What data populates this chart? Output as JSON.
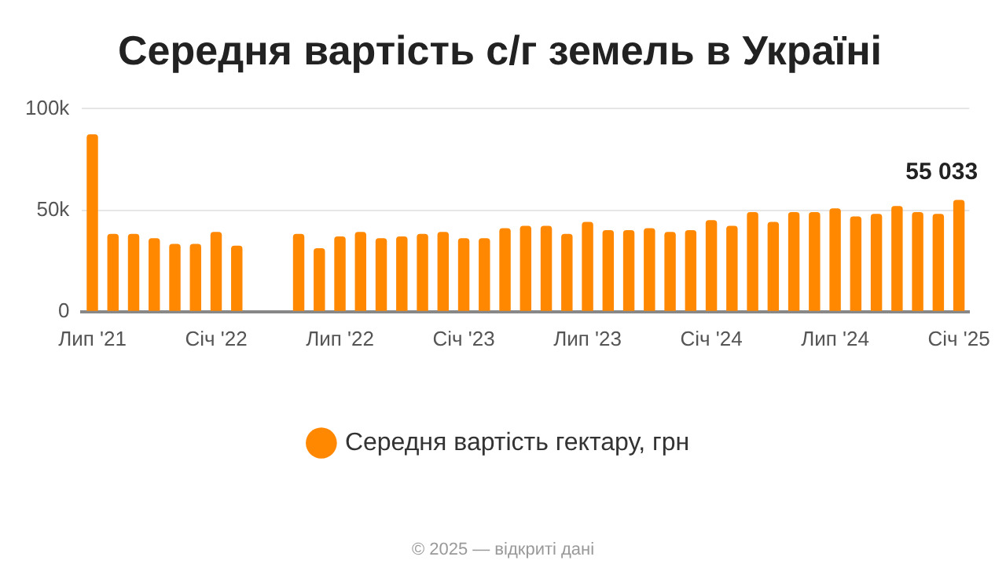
{
  "chart_data": {
    "type": "bar",
    "title": "Середня вартість с/г земель в Україні",
    "categories": [
      "Лип '21",
      null,
      null,
      null,
      null,
      null,
      "Січ '22",
      null,
      null,
      null,
      null,
      null,
      "Лип '22",
      null,
      null,
      null,
      null,
      null,
      "Січ '23",
      null,
      null,
      null,
      null,
      null,
      "Лип '23",
      null,
      null,
      null,
      null,
      null,
      "Січ '24",
      null,
      null,
      null,
      null,
      null,
      "Лип '24",
      null,
      null,
      null,
      null,
      null,
      "Січ '25"
    ],
    "series": [
      {
        "name": "Середня вартість гектару, грн",
        "color": "#ff8800",
        "values": [
          87400,
          38300,
          38300,
          36200,
          33400,
          33400,
          39300,
          32500,
          null,
          null,
          38300,
          31300,
          37100,
          39300,
          36200,
          37100,
          38300,
          39300,
          36200,
          36200,
          41100,
          42300,
          42300,
          38300,
          44200,
          40200,
          40200,
          41100,
          39300,
          40200,
          45100,
          42300,
          49100,
          44200,
          49100,
          49100,
          50900,
          46900,
          48200,
          52100,
          49100,
          48200,
          55033
        ],
        "value_labels": [
          null,
          null,
          null,
          null,
          null,
          null,
          null,
          null,
          null,
          null,
          null,
          null,
          null,
          null,
          null,
          null,
          null,
          null,
          null,
          null,
          null,
          null,
          null,
          null,
          null,
          null,
          null,
          null,
          null,
          null,
          null,
          null,
          null,
          null,
          null,
          null,
          null,
          null,
          null,
          null,
          null,
          null,
          "55 033"
        ]
      }
    ],
    "ylim": [
      0,
      100000
    ],
    "yticks": [
      {
        "value": 0,
        "label": "0"
      },
      {
        "value": 50000,
        "label": "50k"
      },
      {
        "value": 100000,
        "label": "100k"
      }
    ],
    "grid": "y",
    "legend": "bottom",
    "annotations": [
      "© 2025 — відкриті дані"
    ]
  }
}
